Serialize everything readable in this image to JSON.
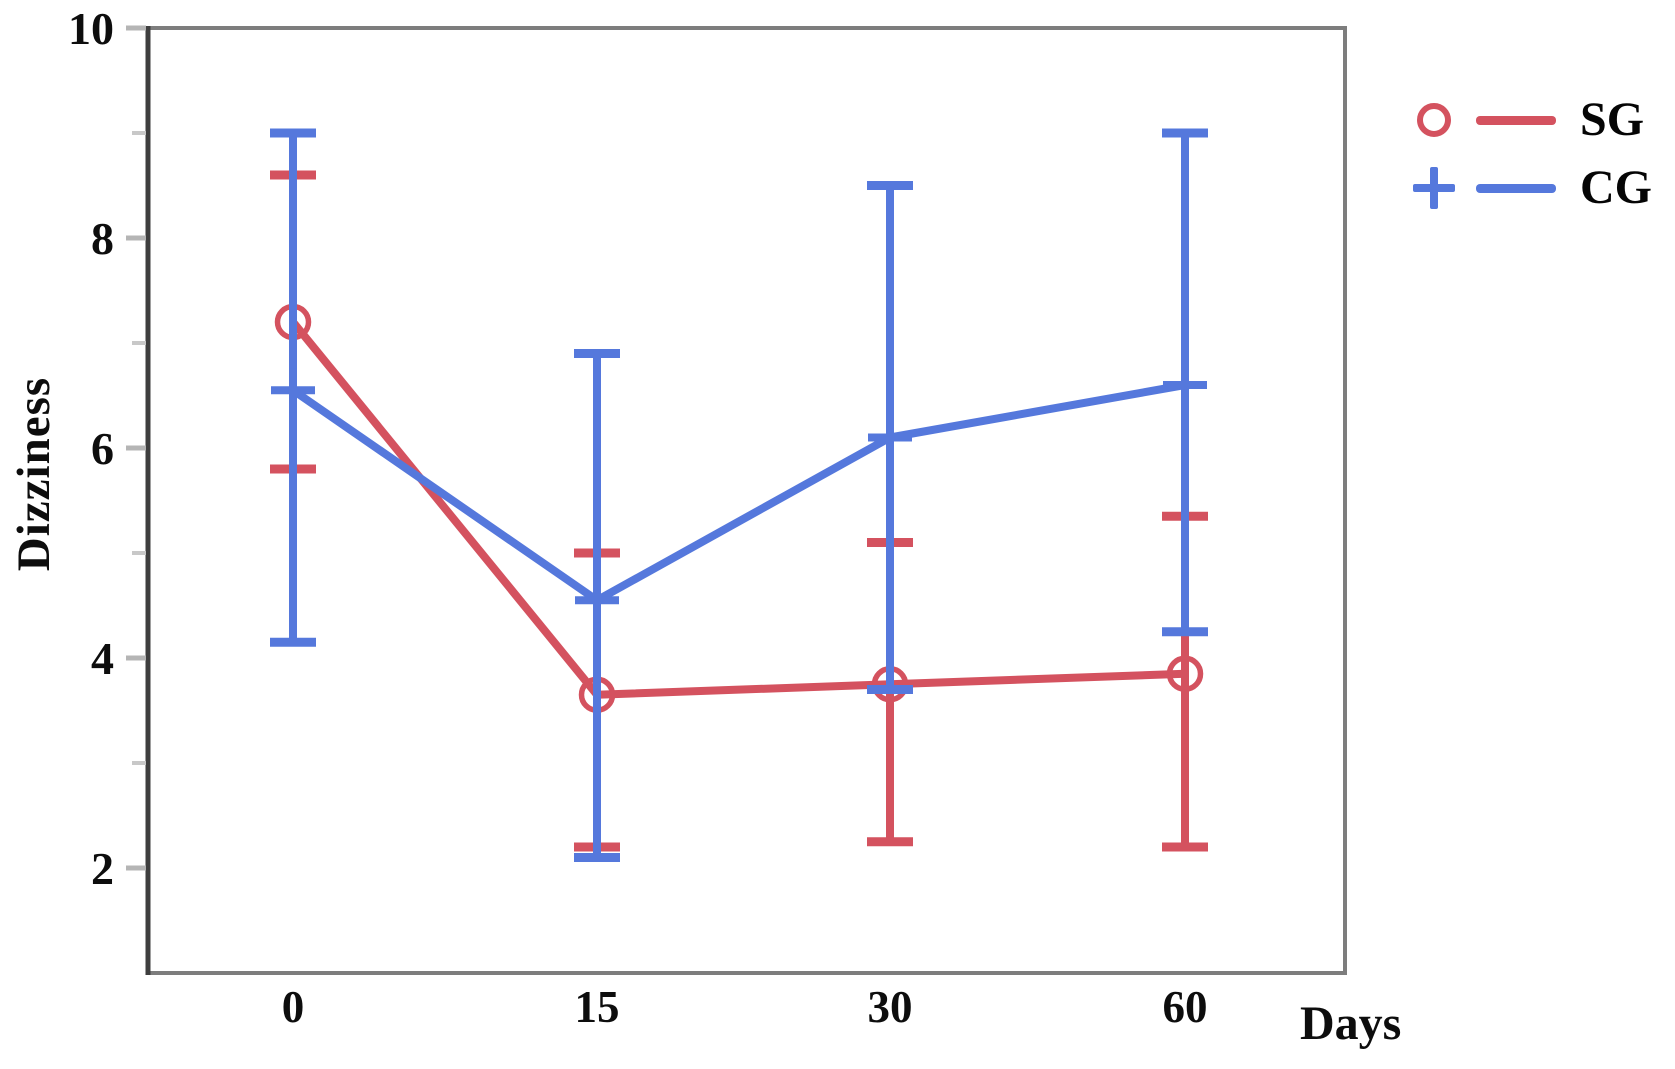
{
  "axes": {
    "y_title": "Dizziness",
    "x_title": "Days",
    "y_tick_labels": [
      "10",
      "8",
      "6",
      "4",
      "2"
    ],
    "x_tick_labels": [
      "0",
      "15",
      "30",
      "60"
    ]
  },
  "legend": {
    "items": [
      {
        "label": "SG",
        "marker": "open-circle",
        "color": "#d4525f"
      },
      {
        "label": "CG",
        "marker": "plus",
        "color": "#5578dc"
      }
    ]
  },
  "chart_data": {
    "type": "line",
    "title": "",
    "xlabel": "Days",
    "ylabel": "Dizziness",
    "categories": [
      0,
      15,
      30,
      60
    ],
    "ylim": [
      1,
      10
    ],
    "y_major_ticks": [
      2,
      4,
      6,
      8,
      10
    ],
    "y_minor_ticks": [
      3,
      5,
      7,
      9
    ],
    "grid": false,
    "error_bars": true,
    "legend_position": "top-right outside plot",
    "series": [
      {
        "name": "SG",
        "color": "#d4525f",
        "marker": "circle",
        "means": [
          7.2,
          3.65,
          3.75,
          3.85
        ],
        "err_low": [
          5.8,
          2.2,
          2.25,
          2.2
        ],
        "err_high": [
          8.6,
          5.0,
          5.1,
          5.35
        ]
      },
      {
        "name": "CG",
        "color": "#5578dc",
        "marker": "plus",
        "means": [
          6.55,
          4.55,
          6.1,
          6.6
        ],
        "err_low": [
          4.15,
          2.1,
          3.7,
          4.25
        ],
        "err_high": [
          9.0,
          6.9,
          8.5,
          9.0
        ]
      }
    ]
  }
}
